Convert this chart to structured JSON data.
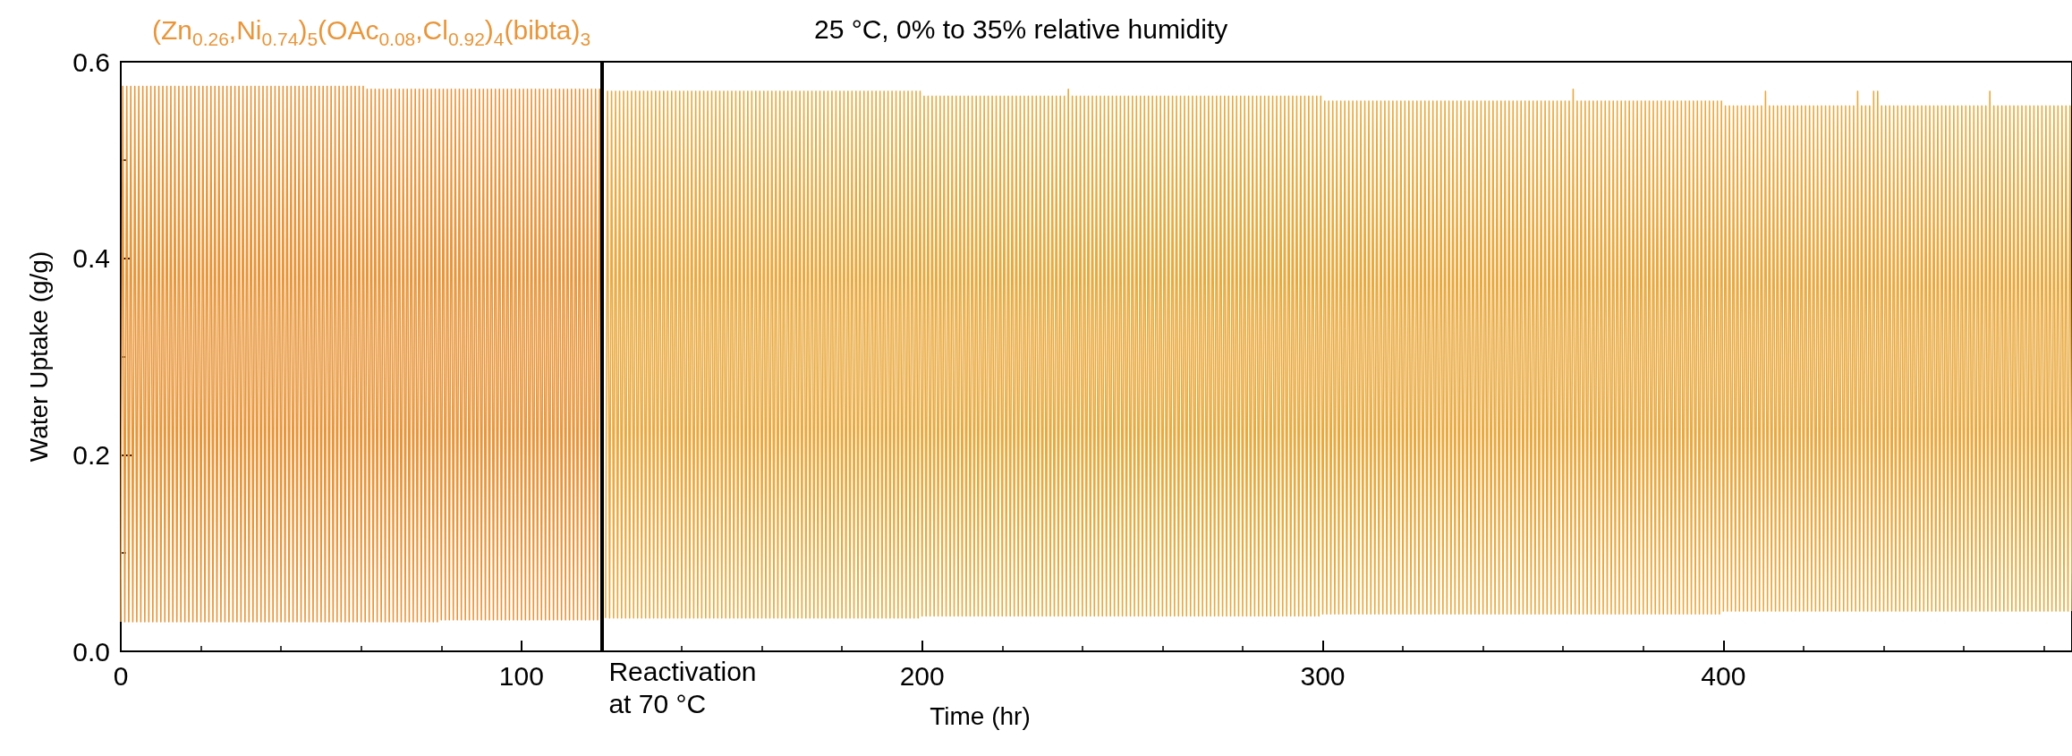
{
  "chart_data": {
    "type": "line",
    "title": "25 °C, 0% to 35% relative humidity",
    "xlabel": "Time (hr)",
    "ylabel": "Water Uptake (g/g)",
    "xlim": [
      0,
      487
    ],
    "xticks": [
      0,
      100,
      200,
      300,
      400
    ],
    "ylim": [
      0,
      0.6
    ],
    "yticks": [
      {
        "value": 0,
        "label": "0.0"
      },
      0.2,
      0.4,
      0.6
    ],
    "ref_lines": [
      {
        "axis": "x",
        "value": 120,
        "label": "Reactivation at 70 °C",
        "color": "#000000"
      }
    ],
    "series": [
      {
        "name": "(Zn$_{0.26}$,Ni$_{0.74}$)$_{5}$(OAc$_{0.08}$,Cl$_{0.92}$)$_{4}$(bibta)$_{3}$",
        "color": "#e8963a",
        "x": [
          0,
          0.5,
          1,
          1.5,
          2,
          2.5,
          3,
          3.5,
          4,
          4.5,
          5,
          5.5,
          6,
          6.5,
          7,
          7.5,
          8,
          8.5,
          9,
          9.5,
          10,
          10.5,
          11,
          11.5,
          12,
          12.5,
          13,
          13.5,
          14,
          14.5,
          15,
          15.5,
          16,
          16.5,
          17,
          17.5,
          18,
          18.5,
          19,
          19.5,
          20,
          20.5,
          21,
          21.5,
          22,
          22.5,
          23,
          23.5,
          24,
          24.5,
          25,
          25.5,
          26,
          26.5,
          27,
          27.5,
          28,
          28.5,
          29,
          29.5,
          30,
          30.5,
          31,
          31.5,
          32,
          32.5,
          33,
          33.5,
          34,
          34.5,
          35,
          35.5,
          36,
          36.5,
          37,
          37.5,
          38,
          38.5,
          39,
          39.5,
          40,
          40.5,
          41,
          41.5,
          42,
          42.5,
          43,
          43.5,
          44,
          44.5,
          45,
          45.5,
          46,
          46.5,
          47,
          47.5,
          48,
          48.5,
          49,
          49.5,
          50,
          50.5,
          51,
          51.5,
          52,
          52.5,
          53,
          53.5,
          54,
          54.5,
          55,
          55.5,
          56,
          56.5,
          57,
          57.5,
          58,
          58.5,
          59,
          59.5,
          60,
          60.5,
          61,
          61.5,
          62,
          62.5,
          63,
          63.5,
          64,
          64.5,
          65,
          65.5,
          66,
          66.5,
          67,
          67.5,
          68,
          68.5,
          69,
          69.5,
          70,
          70.5,
          71,
          71.5,
          72,
          72.5,
          73,
          73.5,
          74,
          74.5,
          75,
          75.5,
          76,
          76.5,
          77,
          77.5,
          78,
          78.5,
          79,
          79.5,
          80,
          80.5,
          81,
          81.5,
          82,
          82.5,
          83,
          83.5,
          84,
          84.5,
          85,
          85.5,
          86,
          86.5,
          87,
          87.5,
          88,
          88.5,
          89,
          89.5,
          90,
          90.5,
          91,
          91.5,
          92,
          92.5,
          93,
          93.5,
          94,
          94.5,
          95,
          95.5,
          96,
          96.5,
          97,
          97.5,
          98,
          98.5,
          99,
          99.5,
          100,
          100.5,
          101,
          101.5,
          102,
          102.5,
          103,
          103.5,
          104,
          104.5,
          105,
          105.5,
          106,
          106.5,
          107,
          107.5,
          108,
          108.5,
          109,
          109.5,
          110,
          110.5,
          111,
          111.5,
          112,
          112.5,
          113,
          113.5,
          114,
          114.5,
          115,
          115.5,
          116,
          116.5,
          117,
          117.5,
          118,
          118.5,
          119,
          119.5,
          120
        ],
        "values": [
          0.03,
          0.575,
          0.03,
          0.575,
          0.03,
          0.575,
          0.03,
          0.575,
          0.03,
          0.575,
          0.03,
          0.575,
          0.03,
          0.575,
          0.03,
          0.575,
          0.03,
          0.575,
          0.03,
          0.575,
          0.03,
          0.575,
          0.03,
          0.575,
          0.03,
          0.575,
          0.03,
          0.575,
          0.03,
          0.575,
          0.03,
          0.575,
          0.03,
          0.575,
          0.03,
          0.575,
          0.03,
          0.575,
          0.03,
          0.575,
          0.03,
          0.575,
          0.03,
          0.575,
          0.03,
          0.575,
          0.03,
          0.575,
          0.03,
          0.575,
          0.03,
          0.575,
          0.03,
          0.575,
          0.03,
          0.575,
          0.03,
          0.575,
          0.03,
          0.575,
          0.03,
          0.575,
          0.03,
          0.575,
          0.03,
          0.575,
          0.03,
          0.575,
          0.03,
          0.575,
          0.03,
          0.575,
          0.03,
          0.575,
          0.03,
          0.575,
          0.03,
          0.575,
          0.03,
          0.575,
          0.03,
          0.575,
          0.03,
          0.575,
          0.03,
          0.575,
          0.03,
          0.575,
          0.03,
          0.575,
          0.03,
          0.575,
          0.03,
          0.575,
          0.03,
          0.575,
          0.03,
          0.575,
          0.03,
          0.575,
          0.03,
          0.575,
          0.03,
          0.575,
          0.03,
          0.575,
          0.03,
          0.575,
          0.03,
          0.575,
          0.03,
          0.575,
          0.03,
          0.575,
          0.03,
          0.575,
          0.03,
          0.575,
          0.03,
          0.575,
          0.03,
          0.575,
          0.03,
          0.572,
          0.03,
          0.572,
          0.03,
          0.572,
          0.03,
          0.572,
          0.03,
          0.572,
          0.03,
          0.572,
          0.03,
          0.572,
          0.03,
          0.572,
          0.03,
          0.572,
          0.03,
          0.572,
          0.03,
          0.572,
          0.03,
          0.572,
          0.03,
          0.572,
          0.03,
          0.572,
          0.03,
          0.572,
          0.03,
          0.572,
          0.03,
          0.572,
          0.03,
          0.572,
          0.03,
          0.572,
          0.032,
          0.572,
          0.032,
          0.572,
          0.032,
          0.572,
          0.032,
          0.572,
          0.032,
          0.572,
          0.032,
          0.572,
          0.032,
          0.572,
          0.032,
          0.572,
          0.032,
          0.572,
          0.032,
          0.572,
          0.032,
          0.572,
          0.032,
          0.572,
          0.032,
          0.572,
          0.032,
          0.572,
          0.032,
          0.572,
          0.032,
          0.572,
          0.032,
          0.572,
          0.032,
          0.572,
          0.032,
          0.572,
          0.032,
          0.572,
          0.032,
          0.572,
          0.032,
          0.572,
          0.032,
          0.572,
          0.032,
          0.572,
          0.032,
          0.572,
          0.032,
          0.572,
          0.032,
          0.572,
          0.032,
          0.572,
          0.032,
          0.572,
          0.032,
          0.572,
          0.032,
          0.572,
          0.032,
          0.572,
          0.032,
          0.572,
          0.032,
          0.572,
          0.032,
          0.572,
          0.032,
          0.572,
          0.032,
          0.572,
          0.032,
          0.572,
          0.032,
          0.572,
          0.032,
          0.572,
          0.032
        ]
      },
      {
        "color": "#e9a93e",
        "x": [
          121,
          121.5,
          122,
          122.5,
          123,
          123.5,
          124,
          124.5,
          125,
          125.5,
          126,
          126.5,
          127,
          127.5,
          128,
          128.5,
          129,
          129.5,
          130,
          130.5,
          131,
          131.5,
          132,
          132.5,
          133,
          133.5,
          134,
          134.5,
          135,
          135.5,
          136,
          136.5,
          137,
          137.5,
          138,
          138.5,
          139,
          139.5,
          140,
          140.5,
          141,
          141.5,
          142,
          142.5,
          143,
          143.5,
          144,
          144.5,
          145,
          145.5,
          146,
          146.5,
          147,
          147.5,
          148,
          148.5,
          149,
          149.5,
          150,
          150.5,
          151,
          151.5,
          152,
          152.5,
          153,
          153.5,
          154,
          154.5,
          155,
          155.5,
          156,
          156.5,
          157,
          157.5,
          158,
          158.5,
          159,
          159.5,
          160,
          160.5,
          161,
          161.5,
          162,
          162.5,
          163,
          163.5,
          164,
          164.5,
          165,
          165.5,
          166,
          166.5,
          167,
          167.5,
          168,
          168.5,
          169,
          169.5,
          170,
          170.5,
          171,
          171.5,
          172,
          172.5,
          173,
          173.5,
          174,
          174.5,
          175,
          175.5,
          176,
          176.5,
          177,
          177.5,
          178,
          178.5,
          179,
          179.5,
          180,
          180.5,
          181,
          181.5,
          182,
          182.5,
          183,
          183.5,
          184,
          184.5,
          185,
          185.5,
          186,
          186.5,
          187,
          187.5,
          188,
          188.5,
          189,
          189.5,
          190,
          190.5,
          191,
          191.5,
          192,
          192.5,
          193,
          193.5,
          194,
          194.5,
          195,
          195.5,
          196,
          196.5,
          197,
          197.5,
          198,
          198.5,
          199,
          199.5,
          200,
          200.5,
          201,
          201.5,
          202,
          202.5,
          203,
          203.5,
          204,
          204.5,
          205,
          205.5,
          206,
          206.5,
          207,
          207.5,
          208,
          208.5,
          209,
          209.5,
          210,
          210.5,
          211,
          211.5,
          212,
          212.5,
          213,
          213.5,
          214,
          214.5,
          215,
          215.5,
          216,
          216.5,
          217,
          217.5,
          218,
          218.5,
          219,
          219.5,
          220,
          220.5,
          221,
          221.5,
          222,
          222.5,
          223,
          223.5,
          224,
          224.5,
          225,
          225.5,
          226,
          226.5,
          227,
          227.5,
          228,
          228.5,
          229,
          229.5,
          230,
          230.5,
          231,
          231.5,
          232,
          232.5,
          233,
          233.5,
          234,
          234.5,
          235,
          235.5,
          236,
          236.5,
          237,
          237.5,
          238,
          238.5,
          239,
          239.5,
          240,
          240.5,
          241,
          241.5,
          242,
          242.5,
          243,
          243.5,
          244,
          244.5,
          245,
          245.5,
          246,
          246.5,
          247,
          247.5,
          248,
          248.5,
          249,
          249.5,
          250,
          250.5,
          251,
          251.5,
          252,
          252.5,
          253,
          253.5,
          254,
          254.5,
          255,
          255.5,
          256,
          256.5,
          257,
          257.5,
          258,
          258.5,
          259,
          259.5,
          260,
          260.5,
          261,
          261.5,
          262,
          262.5,
          263,
          263.5,
          264,
          264.5,
          265,
          265.5,
          266,
          266.5,
          267,
          267.5,
          268,
          268.5,
          269,
          269.5,
          270,
          270.5,
          271,
          271.5,
          272,
          272.5,
          273,
          273.5,
          274,
          274.5,
          275,
          275.5,
          276,
          276.5,
          277,
          277.5,
          278,
          278.5,
          279,
          279.5,
          280,
          280.5,
          281,
          281.5,
          282,
          282.5,
          283,
          283.5,
          284,
          284.5,
          285,
          285.5,
          286,
          286.5,
          287,
          287.5,
          288,
          288.5,
          289,
          289.5,
          290,
          290.5,
          291,
          291.5,
          292,
          292.5,
          293,
          293.5,
          294,
          294.5,
          295,
          295.5,
          296,
          296.5,
          297,
          297.5,
          298,
          298.5,
          299,
          299.5,
          300,
          300.5,
          301,
          301.5,
          302,
          302.5,
          303,
          303.5,
          304,
          304.5,
          305,
          305.5,
          306,
          306.5,
          307,
          307.5,
          308,
          308.5,
          309,
          309.5,
          310,
          310.5,
          311,
          311.5,
          312,
          312.5,
          313,
          313.5,
          314,
          314.5,
          315,
          315.5,
          316,
          316.5,
          317,
          317.5,
          318,
          318.5,
          319,
          319.5,
          320,
          320.5,
          321,
          321.5,
          322,
          322.5,
          323,
          323.5,
          324,
          324.5,
          325,
          325.5,
          326,
          326.5,
          327,
          327.5,
          328,
          328.5,
          329,
          329.5,
          330,
          330.5,
          331,
          331.5,
          332,
          332.5,
          333,
          333.5,
          334,
          334.5,
          335,
          335.5,
          336,
          336.5,
          337,
          337.5,
          338,
          338.5,
          339,
          339.5,
          340,
          340.5,
          341,
          341.5,
          342,
          342.5,
          343,
          343.5,
          344,
          344.5,
          345,
          345.5,
          346,
          346.5,
          347,
          347.5,
          348,
          348.5,
          349,
          349.5,
          350,
          350.5,
          351,
          351.5,
          352,
          352.5,
          353,
          353.5,
          354,
          354.5,
          355,
          355.5,
          356,
          356.5,
          357,
          357.5,
          358,
          358.5,
          359,
          359.5,
          360,
          360.5,
          361,
          361.5,
          362,
          362.5,
          363,
          363.5,
          364,
          364.5,
          365,
          365.5,
          366,
          366.5,
          367,
          367.5,
          368,
          368.5,
          369,
          369.5,
          370,
          370.5,
          371,
          371.5,
          372,
          372.5,
          373,
          373.5,
          374,
          374.5,
          375,
          375.5,
          376,
          376.5,
          377,
          377.5,
          378,
          378.5,
          379,
          379.5,
          380,
          380.5,
          381,
          381.5,
          382,
          382.5,
          383,
          383.5,
          384,
          384.5,
          385,
          385.5,
          386,
          386.5,
          387,
          387.5,
          388,
          388.5,
          389,
          389.5,
          390,
          390.5,
          391,
          391.5,
          392,
          392.5,
          393,
          393.5,
          394,
          394.5,
          395,
          395.5,
          396,
          396.5,
          397,
          397.5,
          398,
          398.5,
          399,
          399.5,
          400,
          400.5,
          401,
          401.5,
          402,
          402.5,
          403,
          403.5,
          404,
          404.5,
          405,
          405.5,
          406,
          406.5,
          407,
          407.5,
          408,
          408.5,
          409,
          409.5,
          410,
          410.5,
          411,
          411.5,
          412,
          412.5,
          413,
          413.5,
          414,
          414.5,
          415,
          415.5,
          416,
          416.5,
          417,
          417.5,
          418,
          418.5,
          419,
          419.5,
          420,
          420.5,
          421,
          421.5,
          422,
          422.5,
          423,
          423.5,
          424,
          424.5,
          425,
          425.5,
          426,
          426.5,
          427,
          427.5,
          428,
          428.5,
          429,
          429.5,
          430,
          430.5,
          431,
          431.5,
          432,
          432.5,
          433,
          433.5,
          434,
          434.5,
          435,
          435.5,
          436,
          436.5,
          437,
          437.5,
          438,
          438.5,
          439,
          439.5,
          440,
          440.5,
          441,
          441.5,
          442,
          442.5,
          443,
          443.5,
          444,
          444.5,
          445,
          445.5,
          446,
          446.5,
          447,
          447.5,
          448,
          448.5,
          449,
          449.5,
          450,
          450.5,
          451,
          451.5,
          452,
          452.5,
          453,
          453.5,
          454,
          454.5,
          455,
          455.5,
          456,
          456.5,
          457,
          457.5,
          458,
          458.5,
          459,
          459.5,
          460,
          460.5,
          461,
          461.5,
          462,
          462.5,
          463,
          463.5,
          464,
          464.5,
          465,
          465.5,
          466,
          466.5,
          467,
          467.5,
          468,
          468.5,
          469,
          469.5,
          470,
          470.5,
          471,
          471.5,
          472,
          472.5,
          473,
          473.5,
          474,
          474.5,
          475,
          475.5,
          476,
          476.5,
          477,
          477.5,
          478,
          478.5,
          479,
          479.5,
          480,
          480.5,
          481,
          481.5,
          482,
          482.5,
          483,
          483.5,
          484,
          484.5,
          485,
          485.5,
          486,
          486.5,
          487
        ],
        "values": [
          0.034,
          0.57,
          0.034,
          0.57,
          0.034,
          0.57,
          0.034,
          0.57,
          0.034,
          0.57,
          0.034,
          0.57,
          0.034,
          0.57,
          0.034,
          0.57,
          0.034,
          0.57,
          0.034,
          0.57,
          0.034,
          0.57,
          0.034,
          0.57,
          0.034,
          0.57,
          0.034,
          0.57,
          0.034,
          0.57,
          0.034,
          0.57,
          0.034,
          0.57,
          0.034,
          0.57,
          0.034,
          0.57,
          0.034,
          0.57,
          0.034,
          0.57,
          0.034,
          0.57,
          0.034,
          0.57,
          0.034,
          0.57,
          0.034,
          0.57,
          0.034,
          0.57,
          0.034,
          0.57,
          0.034,
          0.57,
          0.034,
          0.57,
          0.034,
          0.57,
          0.034,
          0.57,
          0.034,
          0.57,
          0.034,
          0.57,
          0.034,
          0.57,
          0.034,
          0.57,
          0.034,
          0.57,
          0.034,
          0.57,
          0.034,
          0.57,
          0.034,
          0.57,
          0.034,
          0.57,
          0.034,
          0.57,
          0.034,
          0.57,
          0.034,
          0.57,
          0.034,
          0.57,
          0.034,
          0.57,
          0.034,
          0.57,
          0.034,
          0.57,
          0.034,
          0.57,
          0.034,
          0.57,
          0.034,
          0.57,
          0.034,
          0.57,
          0.034,
          0.57,
          0.034,
          0.57,
          0.034,
          0.57,
          0.034,
          0.57,
          0.034,
          0.57,
          0.034,
          0.57,
          0.034,
          0.57,
          0.034,
          0.57,
          0.034,
          0.57,
          0.034,
          0.57,
          0.034,
          0.57,
          0.034,
          0.57,
          0.034,
          0.57,
          0.034,
          0.57,
          0.034,
          0.57,
          0.034,
          0.57,
          0.034,
          0.57,
          0.034,
          0.57,
          0.034,
          0.57,
          0.034,
          0.57,
          0.034,
          0.57,
          0.034,
          0.57,
          0.034,
          0.57,
          0.034,
          0.57,
          0.034,
          0.57,
          0.034,
          0.57,
          0.034,
          0.57,
          0.034,
          0.57,
          0.036,
          0.565,
          0.036,
          0.565,
          0.036,
          0.565,
          0.036,
          0.565,
          0.036,
          0.565,
          0.036,
          0.565,
          0.036,
          0.565,
          0.036,
          0.565,
          0.036,
          0.565,
          0.036,
          0.565,
          0.036,
          0.565,
          0.036,
          0.565,
          0.036,
          0.565,
          0.036,
          0.565,
          0.036,
          0.565,
          0.036,
          0.565,
          0.036,
          0.565,
          0.036,
          0.565,
          0.036,
          0.565,
          0.036,
          0.565,
          0.036,
          0.565,
          0.036,
          0.565,
          0.036,
          0.565,
          0.036,
          0.565,
          0.036,
          0.565,
          0.036,
          0.565,
          0.036,
          0.565,
          0.036,
          0.565,
          0.036,
          0.565,
          0.036,
          0.565,
          0.036,
          0.565,
          0.036,
          0.565,
          0.036,
          0.565,
          0.036,
          0.565,
          0.036,
          0.565,
          0.036,
          0.565,
          0.036,
          0.572,
          0.036,
          0.565,
          0.036,
          0.565,
          0.036,
          0.565,
          0.036,
          0.565,
          0.036,
          0.565,
          0.036,
          0.565,
          0.036,
          0.565,
          0.036,
          0.565,
          0.036,
          0.565,
          0.036,
          0.565,
          0.036,
          0.565,
          0.036,
          0.565,
          0.036,
          0.565,
          0.036,
          0.565,
          0.036,
          0.565,
          0.036,
          0.565,
          0.036,
          0.565,
          0.036,
          0.565,
          0.036,
          0.565,
          0.036,
          0.565,
          0.036,
          0.565,
          0.036,
          0.565,
          0.036,
          0.565,
          0.036,
          0.565,
          0.036,
          0.565,
          0.036,
          0.565,
          0.036,
          0.565,
          0.036,
          0.565,
          0.036,
          0.565,
          0.036,
          0.565,
          0.036,
          0.565,
          0.036,
          0.565,
          0.036,
          0.565,
          0.036,
          0.565,
          0.036,
          0.565,
          0.036,
          0.565,
          0.036,
          0.565,
          0.036,
          0.565,
          0.036,
          0.565,
          0.036,
          0.565,
          0.036,
          0.565,
          0.036,
          0.565,
          0.036,
          0.565,
          0.036,
          0.565,
          0.036,
          0.565,
          0.036,
          0.565,
          0.036,
          0.565,
          0.036,
          0.565,
          0.036,
          0.565,
          0.036,
          0.565,
          0.036,
          0.565,
          0.036,
          0.565,
          0.036,
          0.565,
          0.036,
          0.565,
          0.036,
          0.565,
          0.036,
          0.565,
          0.036,
          0.565,
          0.036,
          0.565,
          0.036,
          0.565,
          0.036,
          0.565,
          0.036,
          0.565,
          0.036,
          0.565,
          0.036,
          0.565,
          0.038,
          0.56,
          0.038,
          0.56,
          0.038,
          0.56,
          0.038,
          0.56,
          0.038,
          0.56,
          0.038,
          0.56,
          0.038,
          0.56,
          0.038,
          0.56,
          0.038,
          0.56,
          0.038,
          0.56,
          0.038,
          0.56,
          0.038,
          0.56,
          0.038,
          0.56,
          0.038,
          0.56,
          0.038,
          0.56,
          0.038,
          0.56,
          0.038,
          0.56,
          0.038,
          0.56,
          0.038,
          0.56,
          0.038,
          0.56,
          0.038,
          0.56,
          0.038,
          0.56,
          0.038,
          0.56,
          0.038,
          0.56,
          0.038,
          0.56,
          0.038,
          0.56,
          0.038,
          0.56,
          0.038,
          0.56,
          0.038,
          0.56,
          0.038,
          0.56,
          0.038,
          0.56,
          0.038,
          0.56,
          0.038,
          0.56,
          0.038,
          0.56,
          0.038,
          0.56,
          0.038,
          0.56,
          0.038,
          0.56,
          0.038,
          0.56,
          0.038,
          0.56,
          0.038,
          0.56,
          0.038,
          0.56,
          0.038,
          0.56,
          0.038,
          0.56,
          0.038,
          0.56,
          0.038,
          0.56,
          0.038,
          0.56,
          0.038,
          0.56,
          0.038,
          0.56,
          0.038,
          0.56,
          0.038,
          0.56,
          0.038,
          0.56,
          0.038,
          0.56,
          0.038,
          0.56,
          0.038,
          0.56,
          0.038,
          0.56,
          0.038,
          0.56,
          0.038,
          0.56,
          0.038,
          0.56,
          0.038,
          0.56,
          0.038,
          0.56,
          0.038,
          0.56,
          0.038,
          0.56,
          0.038,
          0.572,
          0.038,
          0.56,
          0.038,
          0.56,
          0.038,
          0.56,
          0.038,
          0.56,
          0.038,
          0.56,
          0.038,
          0.56,
          0.038,
          0.56,
          0.038,
          0.56,
          0.038,
          0.56,
          0.038,
          0.56,
          0.038,
          0.56,
          0.038,
          0.56,
          0.038,
          0.56,
          0.038,
          0.56,
          0.038,
          0.56,
          0.038,
          0.56,
          0.038,
          0.56,
          0.038,
          0.56,
          0.038,
          0.56,
          0.038,
          0.56,
          0.038,
          0.56,
          0.038,
          0.56,
          0.038,
          0.56,
          0.038,
          0.56,
          0.038,
          0.56,
          0.038,
          0.56,
          0.038,
          0.56,
          0.038,
          0.56,
          0.038,
          0.56,
          0.038,
          0.56,
          0.038,
          0.56,
          0.038,
          0.56,
          0.038,
          0.56,
          0.038,
          0.56,
          0.038,
          0.56,
          0.038,
          0.56,
          0.038,
          0.56,
          0.041,
          0.555,
          0.041,
          0.555,
          0.041,
          0.555,
          0.041,
          0.555,
          0.041,
          0.555,
          0.041,
          0.555,
          0.041,
          0.555,
          0.041,
          0.555,
          0.041,
          0.555,
          0.041,
          0.555,
          0.041,
          0.57,
          0.041,
          0.555,
          0.041,
          0.555,
          0.041,
          0.555,
          0.041,
          0.555,
          0.041,
          0.555,
          0.041,
          0.555,
          0.041,
          0.555,
          0.041,
          0.555,
          0.041,
          0.555,
          0.041,
          0.555,
          0.041,
          0.555,
          0.041,
          0.555,
          0.041,
          0.555,
          0.041,
          0.555,
          0.041,
          0.555,
          0.041,
          0.555,
          0.041,
          0.555,
          0.041,
          0.555,
          0.041,
          0.555,
          0.041,
          0.555,
          0.041,
          0.555,
          0.041,
          0.555,
          0.041,
          0.57,
          0.041,
          0.555,
          0.041,
          0.555,
          0.041,
          0.555,
          0.041,
          0.57,
          0.041,
          0.57,
          0.041,
          0.555,
          0.041,
          0.555,
          0.041,
          0.555,
          0.041,
          0.555,
          0.041,
          0.555,
          0.041,
          0.555,
          0.041,
          0.555,
          0.041,
          0.555,
          0.041,
          0.555,
          0.041,
          0.555,
          0.041,
          0.555,
          0.041,
          0.555,
          0.041,
          0.555,
          0.041,
          0.555,
          0.041,
          0.555,
          0.041,
          0.555,
          0.041,
          0.555,
          0.041,
          0.555,
          0.041,
          0.555,
          0.041,
          0.555,
          0.041,
          0.555,
          0.041,
          0.555,
          0.041,
          0.555,
          0.041,
          0.555,
          0.041,
          0.555,
          0.041,
          0.555,
          0.041,
          0.555,
          0.041,
          0.57,
          0.041,
          0.555,
          0.041,
          0.555,
          0.041,
          0.555,
          0.041,
          0.555,
          0.041,
          0.555,
          0.041,
          0.555,
          0.041,
          0.555,
          0.041,
          0.555,
          0.041,
          0.555,
          0.041,
          0.555,
          0.041,
          0.555,
          0.041,
          0.555,
          0.041,
          0.555,
          0.041,
          0.555,
          0.041,
          0.555,
          0.041,
          0.555,
          0.041,
          0.555,
          0.041,
          0.555,
          0.041,
          0.555,
          0.041,
          0.555,
          0.041
        ]
      }
    ]
  }
}
